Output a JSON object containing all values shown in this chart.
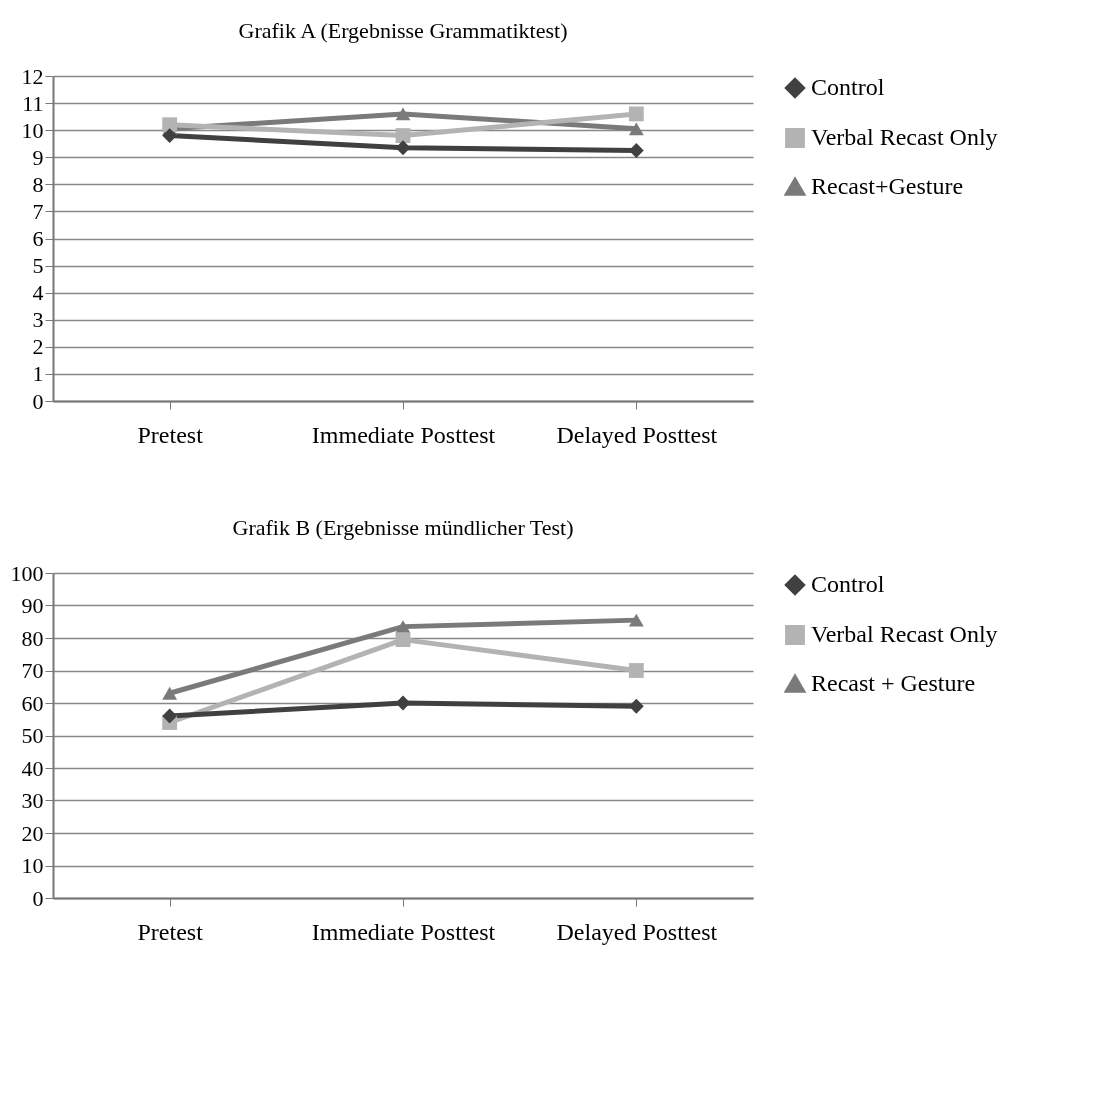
{
  "chart_data": [
    {
      "type": "line",
      "title": "Grafik A (Ergebnisse Grammatiktest)",
      "categories": [
        "Pretest",
        "Immediate Posttest",
        "Delayed Posttest"
      ],
      "ylim": [
        0,
        12
      ],
      "yticks": [
        0,
        1,
        2,
        3,
        4,
        5,
        6,
        7,
        8,
        9,
        10,
        11,
        12
      ],
      "grid": "y",
      "legend": "right",
      "series": [
        {
          "name": "Control",
          "color": "#404040",
          "marker": "diamond",
          "values": [
            9.8,
            9.35,
            9.25
          ]
        },
        {
          "name": "Verbal Recast Only",
          "color": "#b3b3b3",
          "marker": "square",
          "values": [
            10.2,
            9.8,
            10.6
          ]
        },
        {
          "name": "Recast+Gesture",
          "color": "#7a7a7a",
          "marker": "triangle",
          "values": [
            10.05,
            10.6,
            10.05
          ]
        }
      ]
    },
    {
      "type": "line",
      "title": "Grafik B (Ergebnisse mündlicher Test)",
      "categories": [
        "Pretest",
        "Immediate Posttest",
        "Delayed Posttest"
      ],
      "ylim": [
        0,
        100
      ],
      "yticks": [
        0,
        10,
        20,
        30,
        40,
        50,
        60,
        70,
        80,
        90,
        100
      ],
      "grid": "y",
      "legend": "right",
      "series": [
        {
          "name": "Control",
          "color": "#404040",
          "marker": "diamond",
          "values": [
            56,
            60,
            59
          ]
        },
        {
          "name": "Verbal Recast Only",
          "color": "#b3b3b3",
          "marker": "square",
          "values": [
            54,
            79.5,
            70
          ]
        },
        {
          "name": "Recast + Gesture",
          "color": "#7a7a7a",
          "marker": "triangle",
          "values": [
            63,
            83.5,
            85.5
          ]
        }
      ]
    }
  ]
}
